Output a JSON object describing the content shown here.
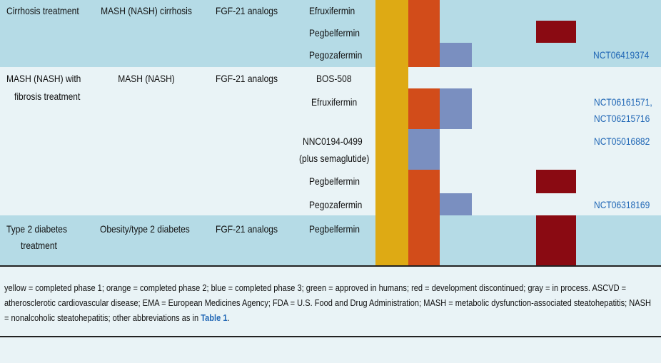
{
  "colors": {
    "band_blue": "#b5dbe6",
    "band_light": "#e9f3f6",
    "yellow": "#deaa14",
    "orange": "#d24c1a",
    "blue": "#7a8fc0",
    "red": "#8a0a12",
    "link": "#1f66b5"
  },
  "rows": {
    "cirrhosis": {
      "indication": "Cirrhosis treatment",
      "disease": "MASH (NASH) cirrhosis",
      "class": "FGF-21 analogs",
      "drugs": [
        "Efruxifermin",
        "Pegbelfermin",
        "Pegozafermin"
      ],
      "trials": [
        "",
        "",
        "NCT06419374"
      ]
    },
    "fibrosis": {
      "indication_line1": "MASH (NASH) with",
      "indication_line2": "fibrosis treatment",
      "disease": "MASH (NASH)",
      "class": "FGF-21 analogs",
      "drugs": [
        "BOS-508",
        "Efruxifermin",
        "NNC0194-0499",
        "Pegbelfermin",
        "Pegozafermin"
      ],
      "drug_note": "(plus semaglutide)",
      "trials": [
        "",
        "NCT06161571,",
        "NCT05016882",
        "",
        "NCT06318169"
      ],
      "trial_extra": "NCT06215716"
    },
    "diabetes": {
      "indication_line1": "Type 2 diabetes",
      "indication_line2": "treatment",
      "disease": "Obesity/type 2 diabetes",
      "class": "FGF-21 analogs",
      "drugs": [
        "Pegbelfermin"
      ]
    }
  },
  "footnote": {
    "text": "yellow = completed phase 1; orange = completed phase 2; blue = completed phase 3; green = approved in humans; red = development discontinued; gray = in process. ASCVD = atherosclerotic cardiovascular disease; EMA = European Medicines Agency; FDA = U.S. Food and Drug Administration; MASH = metabolic dysfunction-associated steatohepatitis; NASH = nonalcoholic steatohepatitis; other abbreviations as in ",
    "link": "Table 1",
    "end": "."
  }
}
